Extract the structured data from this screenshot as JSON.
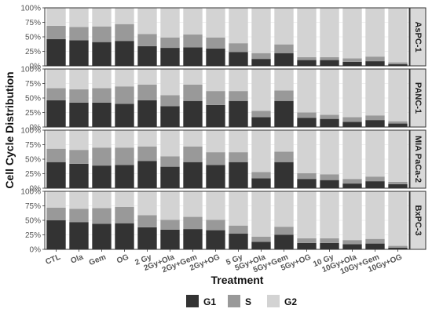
{
  "chart_data": {
    "type": "bar",
    "stacked": true,
    "xlabel": "Treatment",
    "ylabel": "Cell Cycle Distribution",
    "ylim": [
      0,
      100
    ],
    "yticks": [
      "0%",
      "25%",
      "50%",
      "75%",
      "100%"
    ],
    "grid": true,
    "legend_position": "bottom",
    "categories": [
      "CTL",
      "Ola",
      "Gem",
      "OG",
      "2 Gy",
      "2Gy+Ola",
      "2Gy+Gem",
      "2Gy+OG",
      "5 Gy",
      "5Gy+Ola",
      "5Gy+Gem",
      "5Gy+OG",
      "10 Gy",
      "10Gy+Ola",
      "10Gy+Gem",
      "10Gy+OG"
    ],
    "series_names": [
      "G1",
      "S",
      "G2"
    ],
    "colors": {
      "G1": "#333333",
      "S": "#999999",
      "G2": "#d3d3d3"
    },
    "panels": [
      {
        "name": "AsPC-1",
        "series": [
          {
            "name": "G1",
            "values": [
              46,
              44,
              41,
              43,
              34,
              31,
              32,
              30,
              24,
              12,
              22,
              10,
              10,
              7,
              8,
              3
            ]
          },
          {
            "name": "S",
            "values": [
              23,
              23,
              27,
              29,
              21,
              18,
              22,
              19,
              15,
              10,
              15,
              5,
              5,
              6,
              8,
              3
            ]
          },
          {
            "name": "G2",
            "values": [
              31,
              33,
              32,
              28,
              45,
              51,
              46,
              51,
              61,
              78,
              63,
              85,
              85,
              87,
              84,
              94
            ]
          }
        ]
      },
      {
        "name": "PANC-1",
        "series": [
          {
            "name": "G1",
            "values": [
              46,
              42,
              42,
              40,
              46,
              36,
              45,
              38,
              45,
              17,
              45,
              16,
              14,
              9,
              12,
              6
            ]
          },
          {
            "name": "S",
            "values": [
              21,
              23,
              25,
              30,
              27,
              19,
              28,
              24,
              17,
              11,
              18,
              9,
              7,
              8,
              8,
              4
            ]
          },
          {
            "name": "G2",
            "values": [
              33,
              35,
              33,
              30,
              27,
              45,
              27,
              38,
              38,
              72,
              37,
              75,
              79,
              83,
              80,
              90
            ]
          }
        ]
      },
      {
        "name": "MIA PaCa-2",
        "series": [
          {
            "name": "G1",
            "values": [
              45,
              42,
              39,
              40,
              47,
              37,
              45,
              40,
              45,
              17,
              45,
              16,
              14,
              8,
              12,
              7
            ]
          },
          {
            "name": "S",
            "values": [
              23,
              24,
              31,
              30,
              25,
              18,
              27,
              22,
              17,
              11,
              18,
              10,
              10,
              8,
              8,
              4
            ]
          },
          {
            "name": "G2",
            "values": [
              32,
              34,
              30,
              30,
              28,
              45,
              28,
              38,
              38,
              72,
              37,
              74,
              76,
              84,
              80,
              89
            ]
          }
        ]
      },
      {
        "name": "BxPC-3",
        "series": [
          {
            "name": "G1",
            "values": [
              50,
              47,
              44,
              45,
              38,
              34,
              35,
              33,
              27,
              13,
              25,
              11,
              11,
              9,
              10,
              3
            ]
          },
          {
            "name": "S",
            "values": [
              22,
              23,
              27,
              28,
              21,
              17,
              21,
              18,
              14,
              9,
              14,
              8,
              8,
              7,
              8,
              3
            ]
          },
          {
            "name": "G2",
            "values": [
              28,
              30,
              29,
              27,
              41,
              49,
              44,
              49,
              59,
              78,
              61,
              81,
              81,
              84,
              82,
              94
            ]
          }
        ]
      }
    ]
  }
}
